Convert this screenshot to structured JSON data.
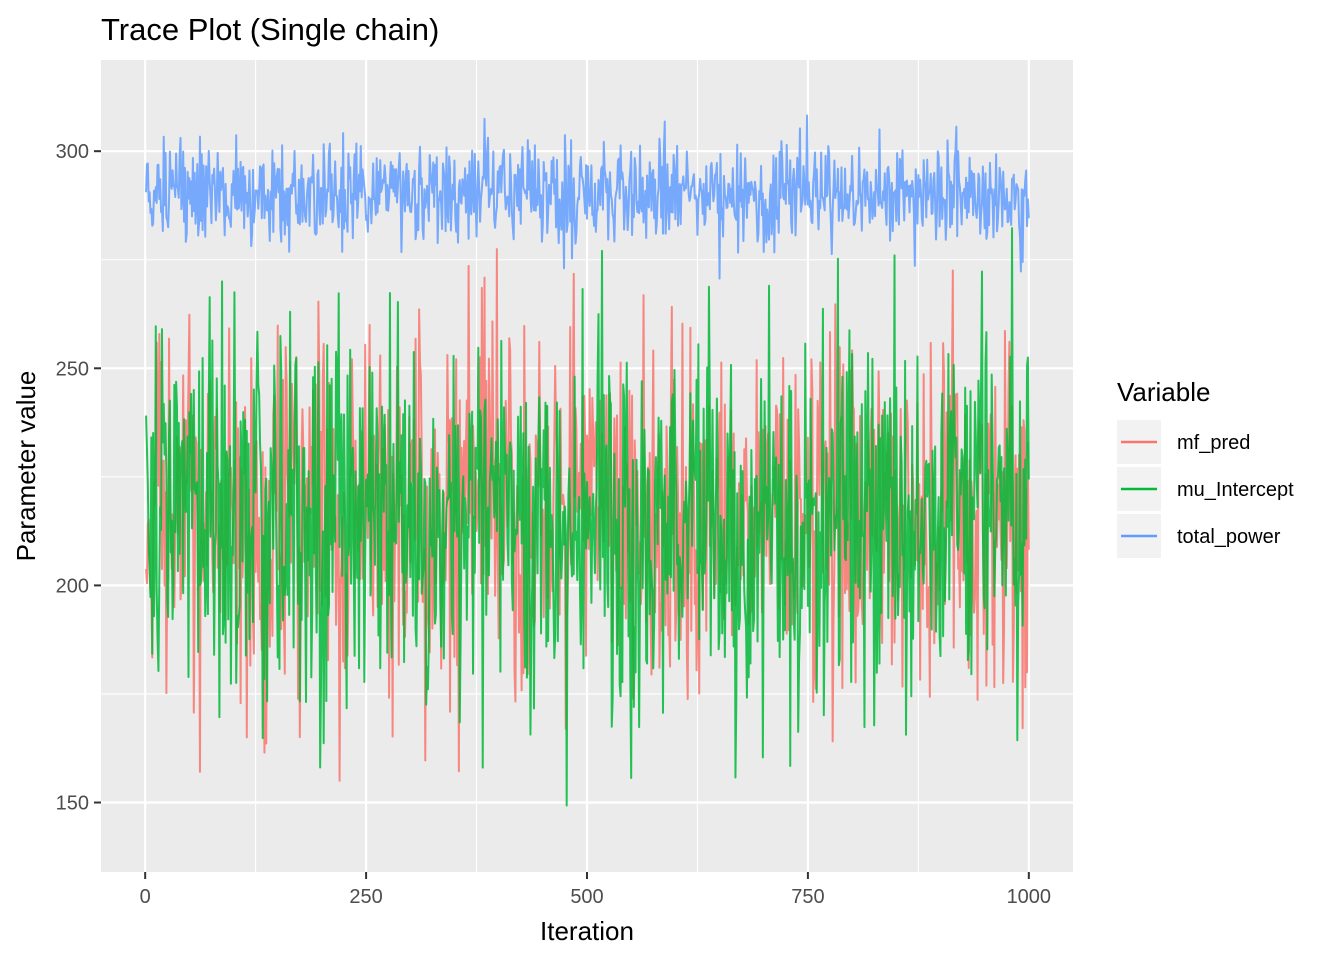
{
  "chart_data": {
    "type": "line",
    "title": "Trace Plot (Single chain)",
    "xlabel": "Iteration",
    "ylabel": "Parameter value",
    "xlim": [
      -50,
      1050
    ],
    "ylim": [
      134,
      321
    ],
    "x_ticks": [
      0,
      250,
      500,
      750,
      1000
    ],
    "x_tick_labels": [
      "0",
      "250",
      "500",
      "750",
      "1000"
    ],
    "y_ticks": [
      150,
      200,
      250,
      300
    ],
    "y_tick_labels": [
      "150",
      "200",
      "250",
      "300"
    ],
    "grid": true,
    "legend": {
      "title": "Variable",
      "position": "right",
      "entries": [
        "mf_pred",
        "mu_Intercept",
        "total_power"
      ]
    },
    "series": [
      {
        "name": "mf_pred",
        "color": "#F8766D",
        "n_points": 1000,
        "mean": 216,
        "sd": 20,
        "min": 155,
        "max": 280
      },
      {
        "name": "mu_Intercept",
        "color": "#00BA38",
        "n_points": 1000,
        "mean": 215,
        "sd": 22,
        "min": 143,
        "max": 290
      },
      {
        "name": "total_power",
        "color": "#619CFF",
        "n_points": 1000,
        "mean": 290,
        "sd": 6,
        "min": 270,
        "max": 312
      }
    ]
  }
}
